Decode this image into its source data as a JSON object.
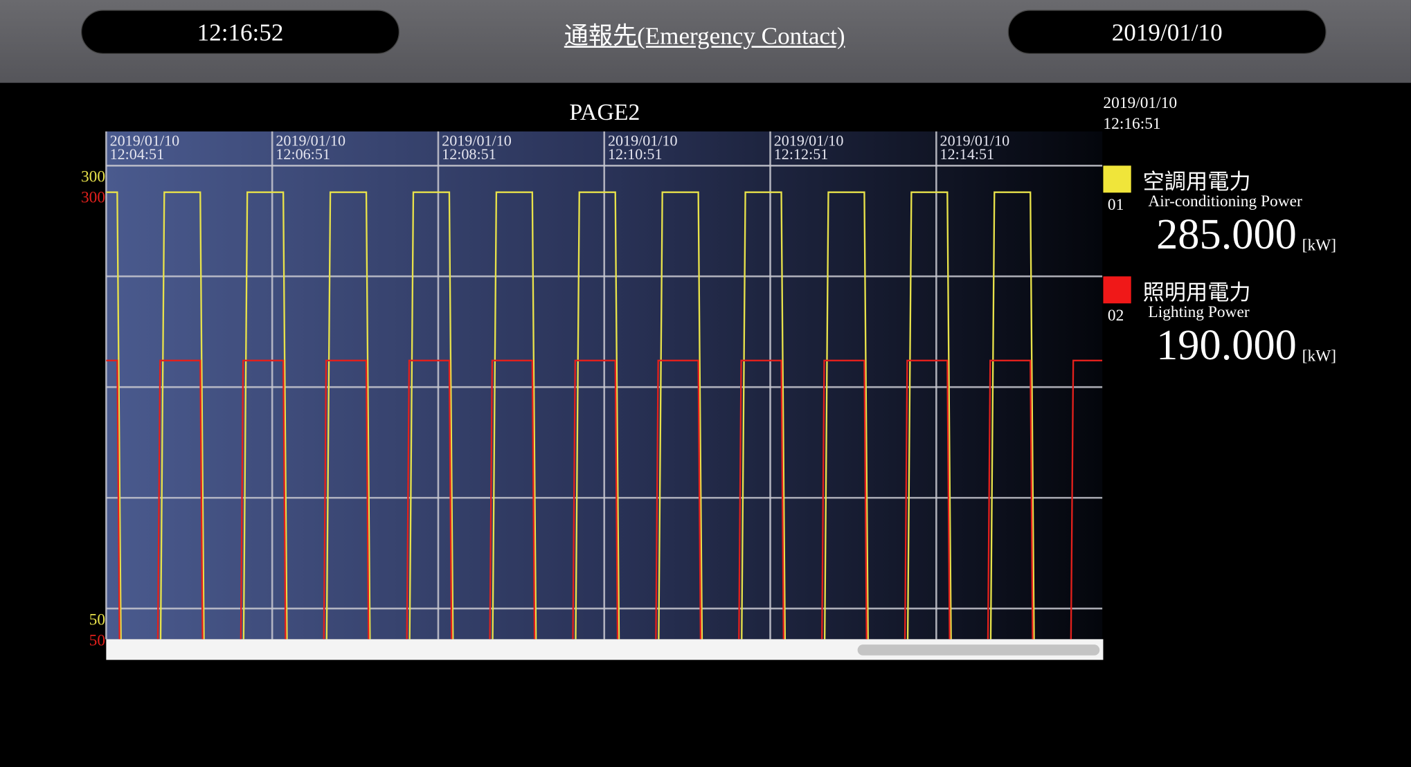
{
  "header": {
    "clock": "12:16:52",
    "link": "通報先(Emergency Contact)",
    "date": "2019/01/10"
  },
  "chart_data": {
    "type": "line",
    "title": "PAGE2",
    "timestamp": "2019/01/10 12:16:51",
    "xlim": [
      "2019/01/10 12:04:51",
      "2019/01/10 12:16:51"
    ],
    "xticks": [
      "2019/01/10 12:04:51",
      "2019/01/10 12:06:51",
      "2019/01/10 12:08:51",
      "2019/01/10 12:10:51",
      "2019/01/10 12:12:51",
      "2019/01/10 12:14:51"
    ],
    "ylim": [
      32.7,
      319.3
    ],
    "yticks": [
      300,
      50
    ],
    "y2lim": [
      32.7,
      319.3
    ],
    "y2ticks": [
      300,
      50
    ],
    "ygrid": [
      300,
      237.5,
      175,
      112.5,
      50
    ],
    "grid": true,
    "series": [
      {
        "name": "空調用電力",
        "name_en": "Air-conditioning Power",
        "id": "01",
        "current": "285.000",
        "unit": "[kW]",
        "color": "#e8e24a",
        "axis": "y",
        "x": [
          "2019/01/10 12:04:51",
          "2019/01/10 12:04:59",
          "2019/01/10 12:05:02",
          "2019/01/10 12:05:30",
          "2019/01/10 12:05:33",
          "2019/01/10 12:05:59",
          "2019/01/10 12:06:02",
          "2019/01/10 12:06:30",
          "2019/01/10 12:06:33",
          "2019/01/10 12:06:59",
          "2019/01/10 12:07:02",
          "2019/01/10 12:07:30",
          "2019/01/10 12:07:33",
          "2019/01/10 12:07:59",
          "2019/01/10 12:08:02",
          "2019/01/10 12:08:30",
          "2019/01/10 12:08:33",
          "2019/01/10 12:08:59",
          "2019/01/10 12:09:02",
          "2019/01/10 12:09:30",
          "2019/01/10 12:09:33",
          "2019/01/10 12:09:59",
          "2019/01/10 12:10:02",
          "2019/01/10 12:10:30",
          "2019/01/10 12:10:33",
          "2019/01/10 12:10:59",
          "2019/01/10 12:11:02",
          "2019/01/10 12:11:30",
          "2019/01/10 12:11:33",
          "2019/01/10 12:11:59",
          "2019/01/10 12:12:02",
          "2019/01/10 12:12:30",
          "2019/01/10 12:12:33",
          "2019/01/10 12:12:59",
          "2019/01/10 12:13:02",
          "2019/01/10 12:13:30",
          "2019/01/10 12:13:33",
          "2019/01/10 12:13:59",
          "2019/01/10 12:14:02",
          "2019/01/10 12:14:30",
          "2019/01/10 12:14:33",
          "2019/01/10 12:14:59",
          "2019/01/10 12:15:02",
          "2019/01/10 12:15:30",
          "2019/01/10 12:15:33",
          "2019/01/10 12:15:59",
          "2019/01/10 12:16:02"
        ],
        "values": [
          285,
          285,
          0,
          0,
          285,
          285,
          0,
          0,
          285,
          285,
          0,
          0,
          285,
          285,
          0,
          0,
          285,
          285,
          0,
          0,
          285,
          285,
          0,
          0,
          285,
          285,
          0,
          0,
          285,
          285,
          0,
          0,
          285,
          285,
          0,
          0,
          285,
          285,
          0,
          0,
          285,
          285,
          0,
          0,
          285,
          285,
          0
        ]
      },
      {
        "name": "照明用電力",
        "name_en": "Lighting Power",
        "id": "02",
        "current": "190.000",
        "unit": "[kW]",
        "color": "#e3201c",
        "axis": "y2",
        "x": [
          "2019/01/10 12:04:51",
          "2019/01/10 12:04:59",
          "2019/01/10 12:05:01",
          "2019/01/10 12:05:28",
          "2019/01/10 12:05:30",
          "2019/01/10 12:05:59",
          "2019/01/10 12:06:01",
          "2019/01/10 12:06:28",
          "2019/01/10 12:06:30",
          "2019/01/10 12:06:59",
          "2019/01/10 12:07:01",
          "2019/01/10 12:07:28",
          "2019/01/10 12:07:30",
          "2019/01/10 12:07:59",
          "2019/01/10 12:08:01",
          "2019/01/10 12:08:28",
          "2019/01/10 12:08:30",
          "2019/01/10 12:08:59",
          "2019/01/10 12:09:01",
          "2019/01/10 12:09:28",
          "2019/01/10 12:09:30",
          "2019/01/10 12:09:59",
          "2019/01/10 12:10:01",
          "2019/01/10 12:10:28",
          "2019/01/10 12:10:30",
          "2019/01/10 12:10:59",
          "2019/01/10 12:11:01",
          "2019/01/10 12:11:28",
          "2019/01/10 12:11:30",
          "2019/01/10 12:11:59",
          "2019/01/10 12:12:01",
          "2019/01/10 12:12:28",
          "2019/01/10 12:12:30",
          "2019/01/10 12:12:59",
          "2019/01/10 12:13:01",
          "2019/01/10 12:13:28",
          "2019/01/10 12:13:30",
          "2019/01/10 12:13:59",
          "2019/01/10 12:14:01",
          "2019/01/10 12:14:28",
          "2019/01/10 12:14:30",
          "2019/01/10 12:14:59",
          "2019/01/10 12:15:01",
          "2019/01/10 12:15:28",
          "2019/01/10 12:15:30",
          "2019/01/10 12:15:59",
          "2019/01/10 12:16:01",
          "2019/01/10 12:16:28",
          "2019/01/10 12:16:30",
          "2019/01/10 12:16:51"
        ],
        "values": [
          190,
          190,
          0,
          0,
          190,
          190,
          0,
          0,
          190,
          190,
          0,
          0,
          190,
          190,
          0,
          0,
          190,
          190,
          0,
          0,
          190,
          190,
          0,
          0,
          190,
          190,
          0,
          0,
          190,
          190,
          0,
          0,
          190,
          190,
          0,
          0,
          190,
          190,
          0,
          0,
          190,
          190,
          0,
          0,
          190,
          190,
          0,
          0,
          190,
          190
        ]
      }
    ]
  }
}
